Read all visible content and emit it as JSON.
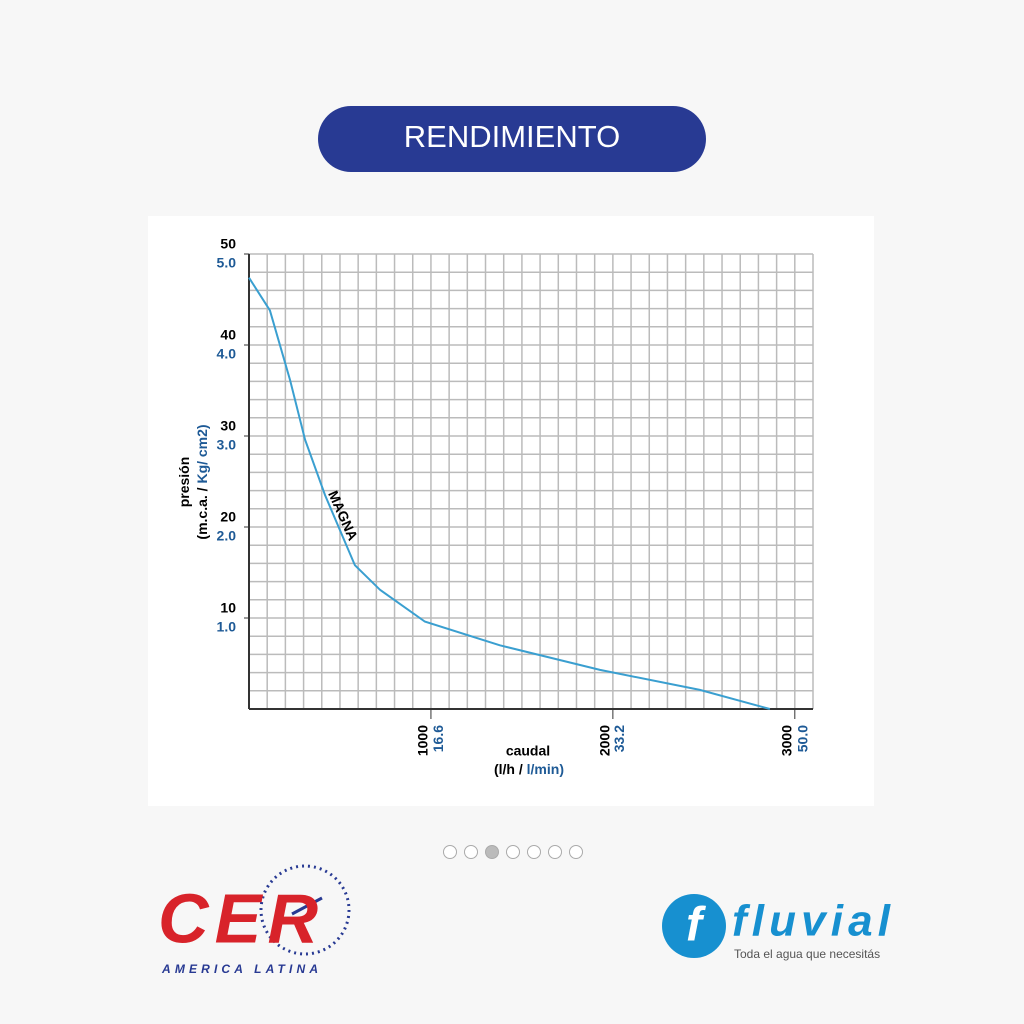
{
  "header": {
    "title": "RENDIMIENTO"
  },
  "chart_data": {
    "type": "line",
    "x": [
      0,
      115,
      225,
      308,
      418,
      582,
      720,
      967,
      1379,
      1929,
      2478,
      2863
    ],
    "series": [
      {
        "name": "MAGNA",
        "color": "#3a9fd0",
        "values": [
          47.4,
          43.8,
          36.2,
          29.6,
          23.5,
          15.8,
          13.1,
          9.6,
          7.0,
          4.3,
          2.1,
          0
        ]
      }
    ],
    "xlim": [
      0,
      3100
    ],
    "xticks": [
      1000,
      2000,
      3000
    ],
    "x2lim": [
      0,
      51.66
    ],
    "x2ticks": [
      16.6,
      33.2,
      {
        "value": 50,
        "label": "50.0"
      }
    ],
    "ylim": [
      0,
      50
    ],
    "yticks": [
      10,
      20,
      30,
      40,
      50
    ],
    "y2lim": [
      0,
      5
    ],
    "y2ticks": [
      {
        "value": 1,
        "label": "1.0"
      },
      {
        "value": 2,
        "label": "2.0"
      },
      {
        "value": 3,
        "label": "3.0"
      },
      {
        "value": 4,
        "label": "4.0"
      },
      {
        "value": 5,
        "label": "5.0"
      }
    ],
    "ylabel": {
      "line1": "presión",
      "line2": [
        "(m.c.a. / ",
        "Kg/ cm2)"
      ]
    },
    "xlabel": {
      "line1": "caudal",
      "line2": [
        "(l/h / ",
        "l/min)"
      ]
    },
    "grid": true
  },
  "logos": {
    "cer": {
      "name": "CER",
      "tagline": "AMERICA LATINA"
    },
    "fluvial": {
      "name": "fluvial",
      "tagline": "Toda el agua que necesitás"
    }
  }
}
